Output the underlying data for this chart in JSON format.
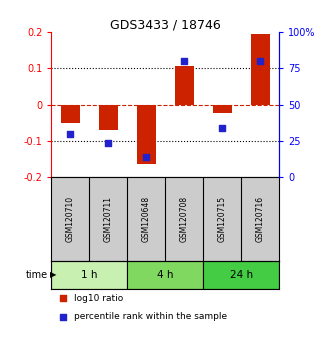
{
  "title": "GDS3433 / 18746",
  "samples": [
    "GSM120710",
    "GSM120711",
    "GSM120648",
    "GSM120708",
    "GSM120715",
    "GSM120716"
  ],
  "log10_ratio": [
    -0.05,
    -0.07,
    -0.162,
    0.105,
    -0.022,
    0.195
  ],
  "percentile_rank": [
    30,
    24,
    14,
    80,
    34,
    80
  ],
  "ylim_left": [
    -0.2,
    0.2
  ],
  "ylim_right": [
    0,
    100
  ],
  "yticks_left": [
    -0.2,
    -0.1,
    0,
    0.1,
    0.2
  ],
  "ytick_labels_left": [
    "-0.2",
    "-0.1",
    "0",
    "0.1",
    "0.2"
  ],
  "ytick_labels_right": [
    "0",
    "25",
    "50",
    "75",
    "100%"
  ],
  "yticks_right": [
    0,
    25,
    50,
    75,
    100
  ],
  "time_groups": [
    {
      "label": "1 h",
      "start": 0,
      "end": 2,
      "color": "#c8f0b0"
    },
    {
      "label": "4 h",
      "start": 2,
      "end": 4,
      "color": "#80d860"
    },
    {
      "label": "24 h",
      "start": 4,
      "end": 6,
      "color": "#44cc44"
    }
  ],
  "bar_color": "#cc2200",
  "blue_color": "#2222cc",
  "bar_width": 0.5,
  "blue_square_size": 25,
  "zero_line_color": "#cc2200",
  "grid_color": "#000000",
  "sample_box_color": "#cccccc",
  "legend_red_label": "log10 ratio",
  "legend_blue_label": "percentile rank within the sample",
  "time_label": "time"
}
